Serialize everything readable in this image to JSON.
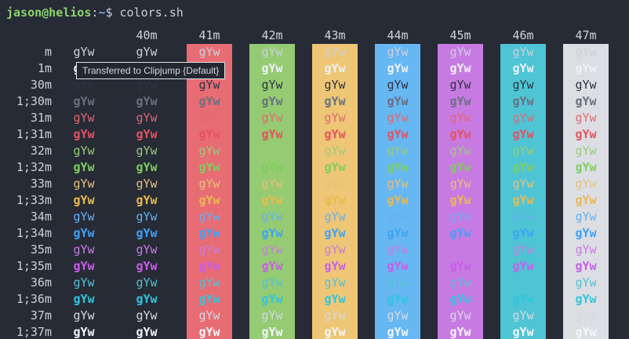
{
  "prompt": {
    "segments": [
      {
        "text": "jason@helios",
        "color": "#8ed36e",
        "bold": true
      },
      {
        "text": ":",
        "color": "#ccd1da",
        "bold": false
      },
      {
        "text": "~",
        "color": "#6cb3f2",
        "bold": true
      },
      {
        "text": "$ ",
        "color": "#ccd1da",
        "bold": false
      },
      {
        "text": "colors.sh",
        "color": "#ccd1da",
        "bold": false
      }
    ]
  },
  "tooltip": {
    "text": "Transferred to Clipjump {Default}"
  },
  "grid": {
    "cell_text": "gYw",
    "column_headers": [
      "40m",
      "41m",
      "42m",
      "43m",
      "44m",
      "45m",
      "46m",
      "47m"
    ],
    "column_backgrounds": [
      "none",
      "none",
      "#e86c74",
      "#95cb72",
      "#eec676",
      "#67b7f3",
      "#c87ae3",
      "#4fc4d5",
      "#dcdee3"
    ],
    "rows": [
      {
        "label": "m",
        "fg": "#ccd1da",
        "bold": false
      },
      {
        "label": "1m",
        "fg": "#eef1f6",
        "bold": true
      },
      {
        "label": "30m",
        "fg": "#2c3340",
        "bold": false
      },
      {
        "label": "1;30m",
        "fg": "#69707f",
        "bold": true
      },
      {
        "label": "31m",
        "fg": "#e06972",
        "bold": false
      },
      {
        "label": "1;31m",
        "fg": "#e5525f",
        "bold": true
      },
      {
        "label": "32m",
        "fg": "#9acc77",
        "bold": false
      },
      {
        "label": "1;32m",
        "fg": "#7fce5f",
        "bold": true
      },
      {
        "label": "33m",
        "fg": "#e9c07b",
        "bold": false
      },
      {
        "label": "1;33m",
        "fg": "#ecb94f",
        "bold": true
      },
      {
        "label": "34m",
        "fg": "#66b1f1",
        "bold": false
      },
      {
        "label": "1;34m",
        "fg": "#3ea3f5",
        "bold": true
      },
      {
        "label": "35m",
        "fg": "#c77de0",
        "bold": false
      },
      {
        "label": "1;35m",
        "fg": "#c95ee8",
        "bold": true
      },
      {
        "label": "36m",
        "fg": "#54c2d3",
        "bold": false
      },
      {
        "label": "1;36m",
        "fg": "#2fc6de",
        "bold": true
      },
      {
        "label": "37m",
        "fg": "#d5d9e1",
        "bold": false
      },
      {
        "label": "1;37m",
        "fg": "#f4f6fa",
        "bold": true
      }
    ]
  },
  "colors": {
    "terminal_bg": "#262b36",
    "default_fg": "#ccd1da",
    "tooltip_bg": "#232830",
    "tooltip_border": "#dfe3e8"
  }
}
